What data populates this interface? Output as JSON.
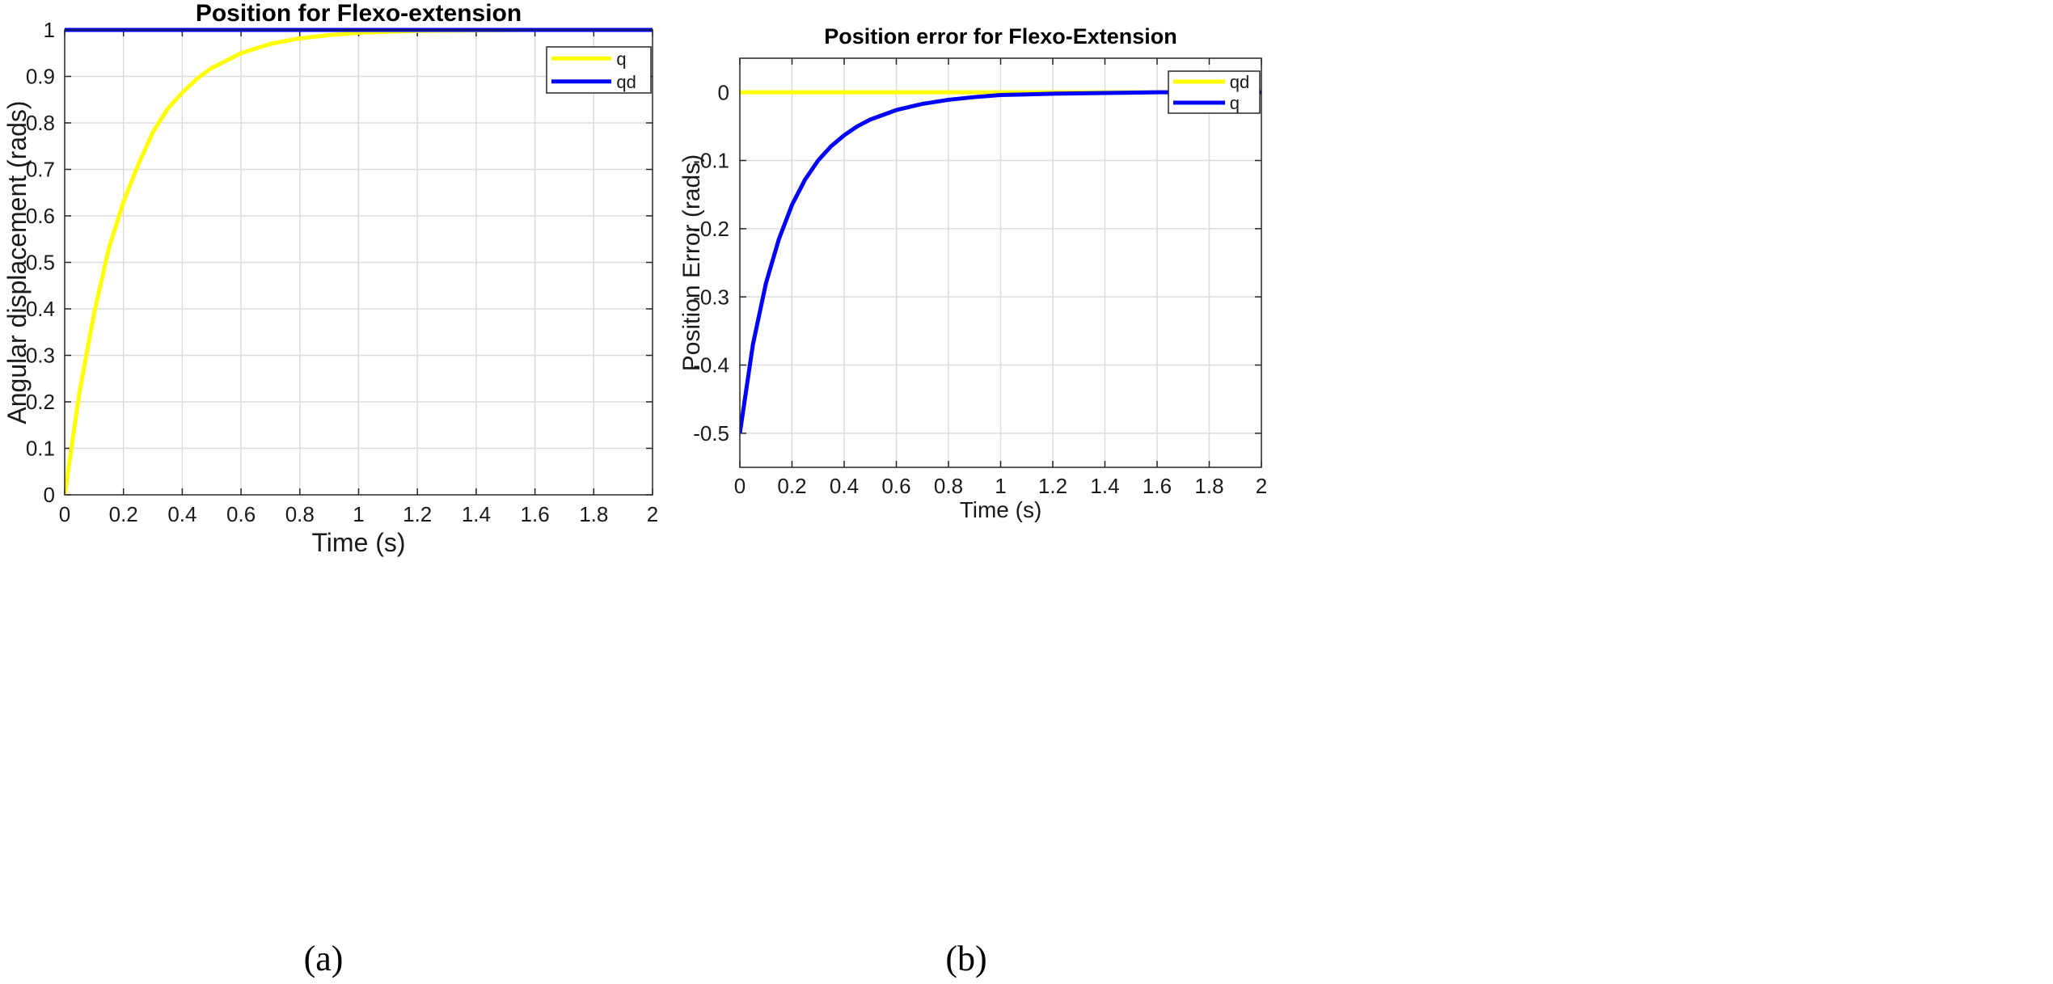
{
  "chart_data": [
    {
      "panel_label": "(a)",
      "type": "line",
      "title": "Position for Flexo-extension",
      "xlabel": "Time (s)",
      "ylabel": "Angular displacement (rads)",
      "xlim": [
        0,
        2
      ],
      "ylim": [
        0,
        1
      ],
      "xticks": [
        0,
        0.2,
        0.4,
        0.6,
        0.8,
        1,
        1.2,
        1.4,
        1.6,
        1.8,
        2
      ],
      "xtick_labels": [
        "0",
        "0.2",
        "0.4",
        "0.6",
        "0.8",
        "1",
        "1.2",
        "1.4",
        "1.6",
        "1.8",
        "2"
      ],
      "yticks": [
        0,
        0.1,
        0.2,
        0.3,
        0.4,
        0.5,
        0.6,
        0.7,
        0.8,
        0.9,
        1
      ],
      "ytick_labels": [
        "0",
        "0.1",
        "0.2",
        "0.3",
        "0.4",
        "0.5",
        "0.6",
        "0.7",
        "0.8",
        "0.9",
        "1"
      ],
      "grid": true,
      "legend_position": "top-right",
      "series": [
        {
          "name": "q",
          "color": "#ffff00",
          "x": [
            0,
            0.05,
            0.1,
            0.15,
            0.2,
            0.25,
            0.3,
            0.35,
            0.4,
            0.45,
            0.5,
            0.6,
            0.7,
            0.8,
            0.9,
            1.0,
            1.1,
            1.2,
            1.4,
            1.6,
            1.8,
            2.0
          ],
          "y": [
            0,
            0.22,
            0.39,
            0.53,
            0.63,
            0.71,
            0.78,
            0.83,
            0.865,
            0.895,
            0.918,
            0.95,
            0.97,
            0.982,
            0.989,
            0.994,
            0.996,
            0.998,
            0.999,
            1.0,
            1.0,
            1.0
          ]
        },
        {
          "name": "qd",
          "color": "#0000ff",
          "x": [
            0,
            2
          ],
          "y": [
            1,
            1
          ]
        }
      ]
    },
    {
      "panel_label": "(b)",
      "type": "line",
      "title": "Position error for Flexo-Extension",
      "xlabel": "Time (s)",
      "ylabel": "Position Error (rads)",
      "xlim": [
        0,
        2
      ],
      "ylim": [
        -0.55,
        0.05
      ],
      "xticks": [
        0,
        0.2,
        0.4,
        0.6,
        0.8,
        1,
        1.2,
        1.4,
        1.6,
        1.8,
        2
      ],
      "xtick_labels": [
        "0",
        "0.2",
        "0.4",
        "0.6",
        "0.8",
        "1",
        "1.2",
        "1.4",
        "1.6",
        "1.8",
        "2"
      ],
      "yticks": [
        -0.5,
        -0.4,
        -0.3,
        -0.2,
        -0.1,
        0
      ],
      "ytick_labels": [
        "-0.5",
        "-0.4",
        "-0.3",
        "-0.2",
        "-0.1",
        "0"
      ],
      "grid": true,
      "legend_position": "top-right",
      "series": [
        {
          "name": "qd",
          "color": "#ffff00",
          "x": [
            0,
            2
          ],
          "y": [
            0,
            0
          ]
        },
        {
          "name": "q",
          "color": "#0000ff",
          "x": [
            0,
            0.05,
            0.1,
            0.15,
            0.2,
            0.25,
            0.3,
            0.35,
            0.4,
            0.45,
            0.5,
            0.6,
            0.7,
            0.8,
            0.9,
            1.0,
            1.1,
            1.2,
            1.4,
            1.6,
            1.8,
            2.0
          ],
          "y": [
            -0.5,
            -0.37,
            -0.28,
            -0.215,
            -0.165,
            -0.128,
            -0.1,
            -0.079,
            -0.063,
            -0.05,
            -0.04,
            -0.026,
            -0.017,
            -0.011,
            -0.007,
            -0.004,
            -0.003,
            -0.002,
            -0.001,
            0,
            0,
            0
          ]
        }
      ]
    }
  ]
}
